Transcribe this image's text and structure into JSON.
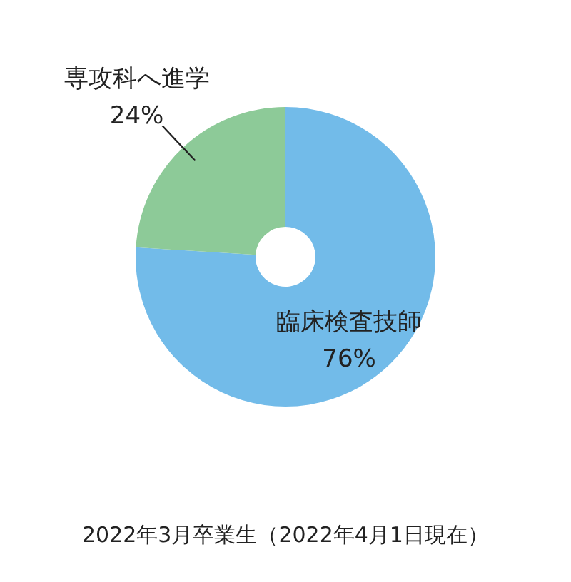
{
  "chart_data": {
    "type": "donut",
    "categories": [
      "臨床検査技師",
      "専攻科へ進学"
    ],
    "values": [
      76,
      24
    ],
    "value_labels": [
      "76%",
      "24%"
    ],
    "colors": [
      "#72bbe9",
      "#8dca98"
    ],
    "legend": false,
    "annotations": [
      "2022年3月卒業生（2022年4月1日現在）"
    ]
  }
}
